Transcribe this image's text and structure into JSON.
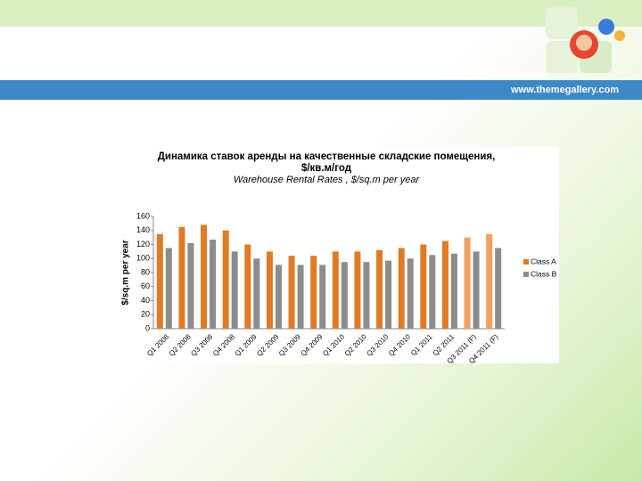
{
  "website": "www.themegallery.com",
  "chart_data": {
    "type": "bar",
    "title": [
      "Динамика ставок аренды на качественные складские помещения,",
      "$/кв.м/год"
    ],
    "subtitle": "Warehouse Rental Rates , $/sq.m per year",
    "y_label": "$/sq.m per year",
    "categories": [
      "Q1 2008",
      "Q2 2008",
      "Q3 2008",
      "Q4 2008",
      "Q1 2009",
      "Q2 2009",
      "Q3 2009",
      "Q4 2009",
      "Q1 2010",
      "Q2 2010",
      "Q3 2010",
      "Q4 2010",
      "Q1 2011",
      "Q2 2011",
      "Q3 2011 (F)",
      "Q4 2011 (F)"
    ],
    "series": [
      {
        "name": "Class A",
        "color": "#e07b22",
        "colors": [
          "#e07b22",
          "#e07b22",
          "#e07b22",
          "#e07b22",
          "#e07b22",
          "#e07b22",
          "#e07b22",
          "#e07b22",
          "#e07b22",
          "#e07b22",
          "#e07b22",
          "#e07b22",
          "#e07b22",
          "#e07b22",
          "#f0a060",
          "#f0a060"
        ],
        "values": [
          135,
          145,
          148,
          140,
          120,
          110,
          104,
          104,
          110,
          110,
          112,
          115,
          120,
          125,
          130,
          135
        ]
      },
      {
        "name": "Class B",
        "color": "#8c8c8c",
        "values": [
          115,
          122,
          127,
          110,
          100,
          91,
          91,
          91,
          95,
          95,
          97,
          100,
          105,
          107,
          110,
          115
        ]
      }
    ],
    "ylim": [
      0,
      160
    ],
    "yticks": [
      0,
      20,
      40,
      60,
      80,
      100,
      120,
      140,
      160
    ],
    "grid": false,
    "legend": "right"
  }
}
